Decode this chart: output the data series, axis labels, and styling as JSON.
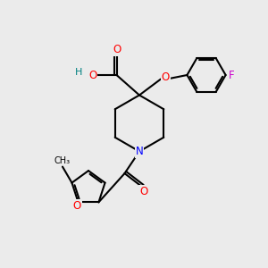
{
  "bg_color": "#ebebeb",
  "atom_colors": {
    "C": "#000000",
    "N": "#0000ff",
    "O": "#ff0000",
    "F": "#cc00cc",
    "H": "#008080"
  }
}
